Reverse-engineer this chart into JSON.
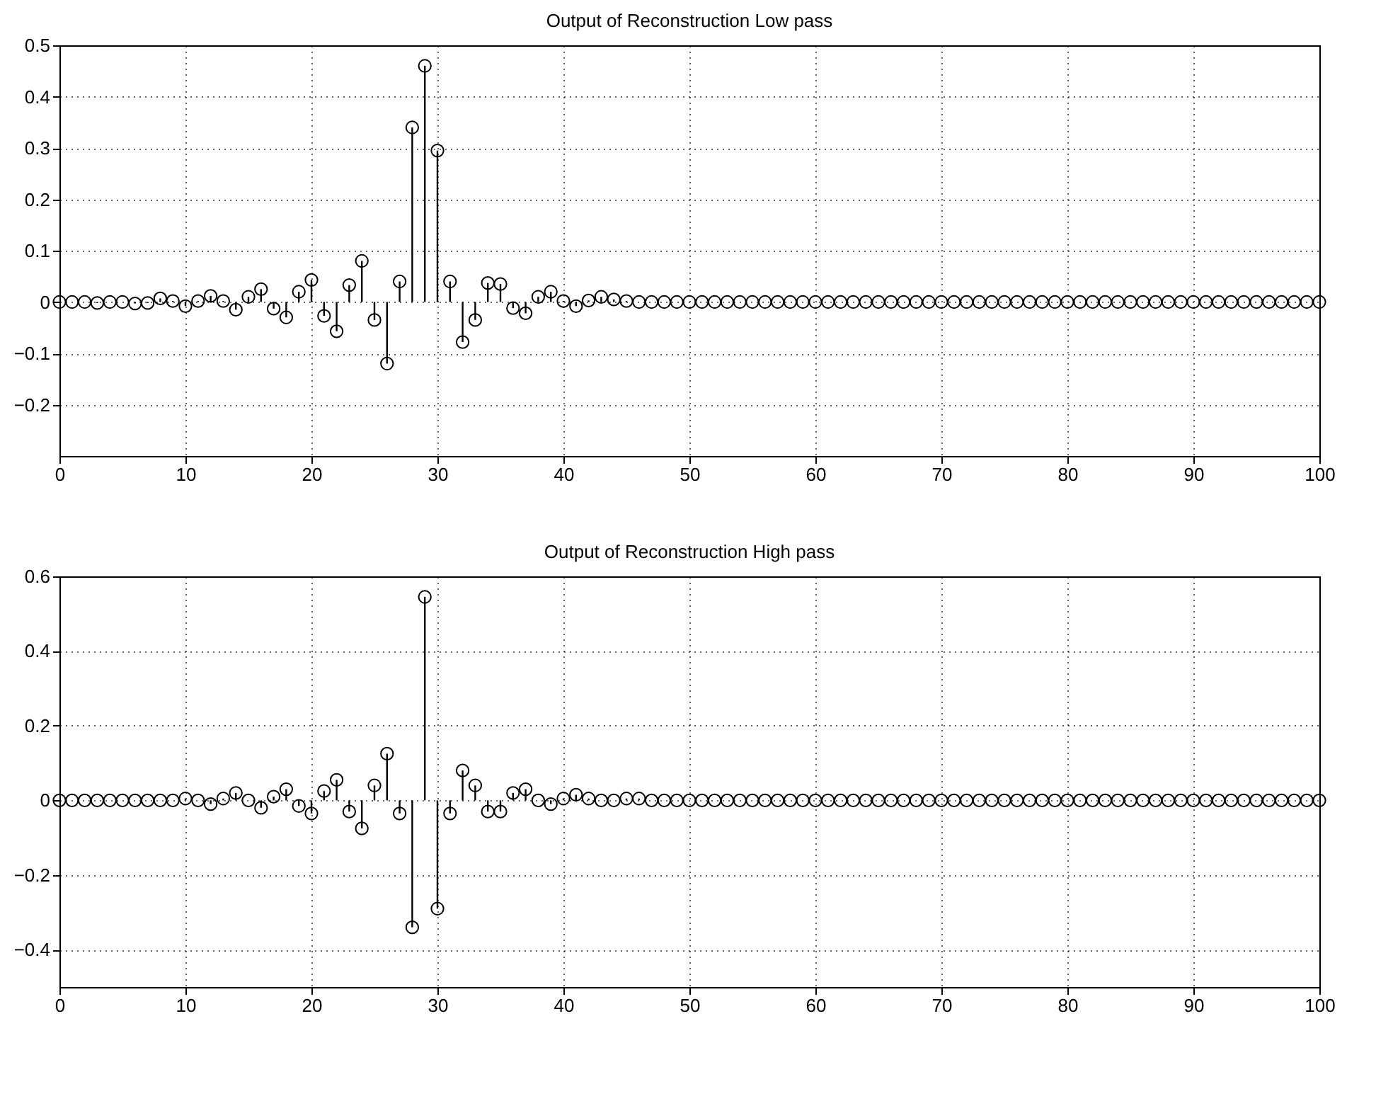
{
  "chart_data": [
    {
      "type": "lollipop",
      "title": "Output of Reconstruction Low pass",
      "x": [
        0,
        1,
        2,
        3,
        4,
        5,
        6,
        7,
        8,
        9,
        10,
        11,
        12,
        13,
        14,
        15,
        16,
        17,
        18,
        19,
        20,
        21,
        22,
        23,
        24,
        25,
        26,
        27,
        28,
        29,
        30,
        31,
        32,
        33,
        34,
        35,
        36,
        37,
        38,
        39,
        40,
        41,
        42,
        43,
        44,
        45,
        46,
        47,
        48,
        49,
        50,
        51,
        52,
        53,
        54,
        55,
        56,
        57,
        58,
        59,
        60,
        61,
        62,
        63,
        64,
        65,
        66,
        67,
        68,
        69,
        70,
        71,
        72,
        73,
        74,
        75,
        76,
        77,
        78,
        79,
        80,
        81,
        82,
        83,
        84,
        85,
        86,
        87,
        88,
        89,
        90,
        91,
        92,
        93,
        94,
        95,
        96,
        97,
        98,
        99,
        100
      ],
      "series": [
        {
          "color": "#000000",
          "values": [
            0,
            0,
            0,
            -0.002,
            0,
            0,
            -0.003,
            -0.002,
            0.007,
            0.002,
            -0.008,
            0.002,
            0.012,
            0.002,
            -0.015,
            0.01,
            0.025,
            -0.013,
            -0.03,
            0.02,
            0.043,
            -0.027,
            -0.057,
            0.033,
            0.08,
            -0.035,
            -0.12,
            0.04,
            0.34,
            0.46,
            0.295,
            0.04,
            -0.078,
            -0.035,
            0.037,
            0.035,
            -0.012,
            -0.022,
            0.01,
            0.02,
            0.002,
            -0.008,
            0.003,
            0.01,
            0.005,
            0.002,
            0,
            0,
            0,
            0,
            0,
            0,
            0,
            0,
            0,
            0,
            0,
            0,
            0,
            0,
            0,
            0,
            0,
            0,
            0,
            0,
            0,
            0,
            0,
            0,
            0,
            0,
            0,
            0,
            0,
            0,
            0,
            0,
            0,
            0,
            0,
            0,
            0,
            0,
            0,
            0,
            0,
            0,
            0,
            0,
            0,
            0,
            0,
            0,
            0,
            0,
            0,
            0,
            0,
            0,
            0
          ]
        }
      ],
      "xlim": [
        0,
        100
      ],
      "xticks": [
        0,
        10,
        20,
        30,
        40,
        50,
        60,
        70,
        80,
        90,
        100
      ],
      "ylim": [
        -0.3,
        0.5
      ],
      "yticks": [
        -0.2,
        -0.1,
        0,
        0.1,
        0.2,
        0.3,
        0.4,
        0.5
      ],
      "grid": true,
      "marker": "circle"
    },
    {
      "type": "lollipop",
      "title": "Output of Reconstruction High pass",
      "x": [
        0,
        1,
        2,
        3,
        4,
        5,
        6,
        7,
        8,
        9,
        10,
        11,
        12,
        13,
        14,
        15,
        16,
        17,
        18,
        19,
        20,
        21,
        22,
        23,
        24,
        25,
        26,
        27,
        28,
        29,
        30,
        31,
        32,
        33,
        34,
        35,
        36,
        37,
        38,
        39,
        40,
        41,
        42,
        43,
        44,
        45,
        46,
        47,
        48,
        49,
        50,
        51,
        52,
        53,
        54,
        55,
        56,
        57,
        58,
        59,
        60,
        61,
        62,
        63,
        64,
        65,
        66,
        67,
        68,
        69,
        70,
        71,
        72,
        73,
        74,
        75,
        76,
        77,
        78,
        79,
        80,
        81,
        82,
        83,
        84,
        85,
        86,
        87,
        88,
        89,
        90,
        91,
        92,
        93,
        94,
        95,
        96,
        97,
        98,
        99,
        100
      ],
      "series": [
        {
          "color": "#000000",
          "values": [
            0,
            0,
            0,
            0,
            0,
            0,
            0,
            0,
            0,
            0,
            0.005,
            0,
            -0.01,
            0.005,
            0.02,
            0,
            -0.02,
            0.01,
            0.03,
            -0.015,
            -0.035,
            0.025,
            0.055,
            -0.03,
            -0.075,
            0.04,
            0.125,
            -0.035,
            -0.34,
            0.545,
            -0.29,
            -0.035,
            0.08,
            0.04,
            -0.03,
            -0.03,
            0.02,
            0.03,
            0,
            -0.01,
            0.005,
            0.015,
            0.005,
            0,
            0,
            0.005,
            0.005,
            0,
            0,
            0,
            0,
            0,
            0,
            0,
            0,
            0,
            0,
            0,
            0,
            0,
            0,
            0,
            0,
            0,
            0,
            0,
            0,
            0,
            0,
            0,
            0,
            0,
            0,
            0,
            0,
            0,
            0,
            0,
            0,
            0,
            0,
            0,
            0,
            0,
            0,
            0,
            0,
            0,
            0,
            0,
            0,
            0,
            0,
            0,
            0,
            0,
            0,
            0,
            0,
            0,
            0
          ]
        }
      ],
      "xlim": [
        0,
        100
      ],
      "xticks": [
        0,
        10,
        20,
        30,
        40,
        50,
        60,
        70,
        80,
        90,
        100
      ],
      "ylim": [
        -0.5,
        0.6
      ],
      "yticks": [
        -0.4,
        -0.2,
        0,
        0.2,
        0.4,
        0.6
      ],
      "grid": true,
      "marker": "circle"
    }
  ]
}
